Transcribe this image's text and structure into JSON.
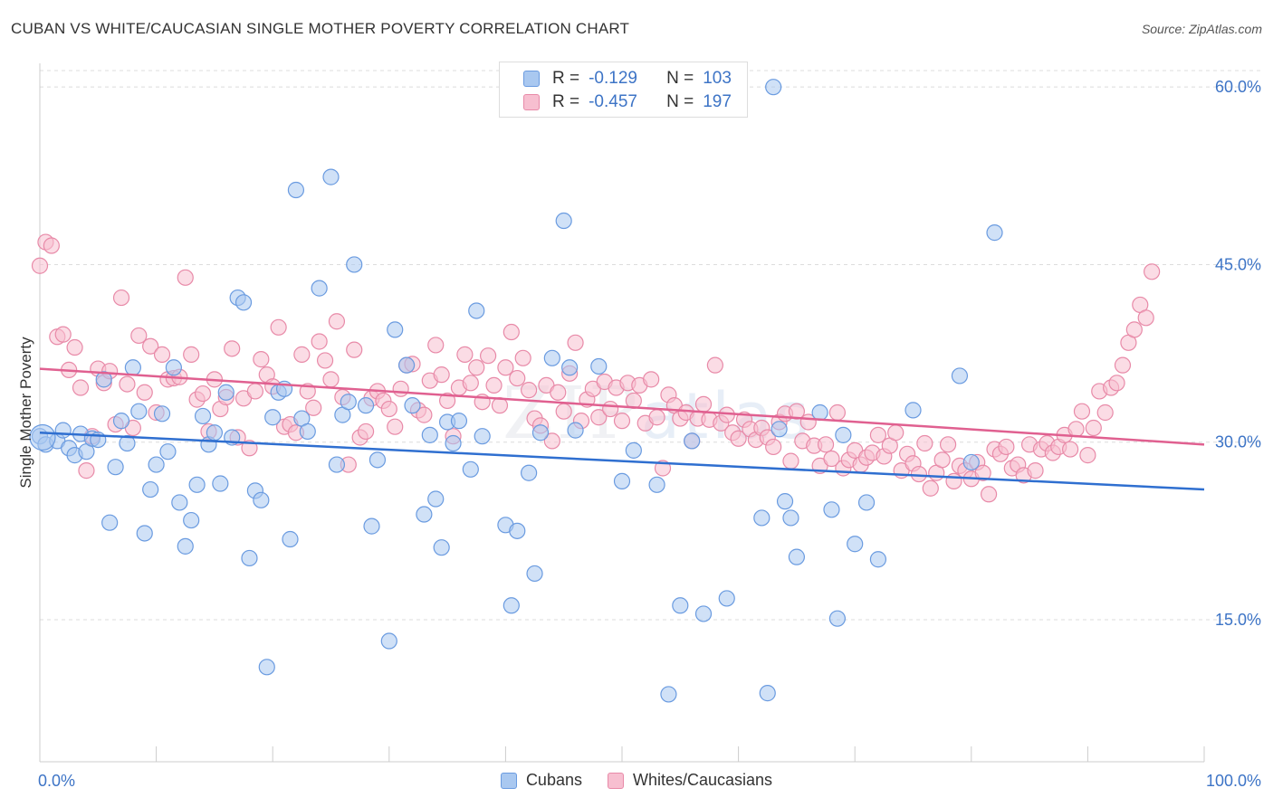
{
  "title": "CUBAN VS WHITE/CAUCASIAN SINGLE MOTHER POVERTY CORRELATION CHART",
  "source": "Source: ZipAtlas.com",
  "watermark": {
    "zip": "ZIP",
    "atlas": "atlas"
  },
  "legend": [
    {
      "r_label": "R =",
      "r_value": "-0.129",
      "n_label": "N =",
      "n_value": "103",
      "color": "#a9c8f0",
      "border": "#6a9be0"
    },
    {
      "r_label": "R =",
      "r_value": "-0.457",
      "n_label": "N =",
      "n_value": "197",
      "color": "#f7bfd0",
      "border": "#e88aa8"
    }
  ],
  "chart_data": {
    "type": "scatter",
    "ylabel": "Single Mother Poverty",
    "xlim": [
      0,
      100
    ],
    "ylim": [
      3,
      62
    ],
    "x_tick_labels": [
      "0.0%",
      "100.0%"
    ],
    "y_ticks": [
      {
        "value": 15,
        "label": "15.0%"
      },
      {
        "value": 30,
        "label": "30.0%"
      },
      {
        "value": 45,
        "label": "45.0%"
      },
      {
        "value": 60,
        "label": "60.0%"
      }
    ],
    "grid": true,
    "legend_position": "bottom",
    "series": [
      {
        "name": "Cubans",
        "color": "#6a9be0",
        "fill": "#a9c8f0",
        "trend": {
          "x": [
            0,
            100
          ],
          "y": [
            30.8,
            26.0
          ],
          "color": "#2f6fd0"
        },
        "points": [
          [
            0,
            30.5
          ],
          [
            0.5,
            29.8
          ],
          [
            1.5,
            30.1
          ],
          [
            2,
            31.0
          ],
          [
            2.5,
            29.5
          ],
          [
            3,
            28.9
          ],
          [
            3.5,
            30.7
          ],
          [
            4,
            29.2
          ],
          [
            4.5,
            30.3
          ],
          [
            5,
            30.2
          ],
          [
            5.5,
            35.3
          ],
          [
            6,
            23.2
          ],
          [
            6.5,
            27.9
          ],
          [
            7,
            31.8
          ],
          [
            7.5,
            29.9
          ],
          [
            8,
            36.3
          ],
          [
            8.5,
            32.6
          ],
          [
            9,
            22.3
          ],
          [
            9.5,
            26.0
          ],
          [
            10,
            28.1
          ],
          [
            10.5,
            32.4
          ],
          [
            11,
            29.2
          ],
          [
            11.5,
            36.3
          ],
          [
            12,
            24.9
          ],
          [
            12.5,
            21.2
          ],
          [
            13,
            23.4
          ],
          [
            13.5,
            26.4
          ],
          [
            14,
            32.2
          ],
          [
            14.5,
            29.8
          ],
          [
            15,
            30.8
          ],
          [
            15.5,
            26.5
          ],
          [
            16,
            34.2
          ],
          [
            16.5,
            30.4
          ],
          [
            17,
            42.2
          ],
          [
            17.5,
            41.8
          ],
          [
            18,
            20.2
          ],
          [
            18.5,
            25.9
          ],
          [
            19,
            25.1
          ],
          [
            19.5,
            11.0
          ],
          [
            20,
            32.1
          ],
          [
            20.5,
            34.2
          ],
          [
            21,
            34.5
          ],
          [
            21.5,
            21.8
          ],
          [
            22,
            51.3
          ],
          [
            22.5,
            32.0
          ],
          [
            23,
            30.9
          ],
          [
            24,
            43.0
          ],
          [
            25,
            52.4
          ],
          [
            25.5,
            28.1
          ],
          [
            26,
            32.3
          ],
          [
            26.5,
            33.4
          ],
          [
            27,
            45.0
          ],
          [
            28,
            33.1
          ],
          [
            28.5,
            22.9
          ],
          [
            29,
            28.5
          ],
          [
            30,
            13.2
          ],
          [
            30.5,
            39.5
          ],
          [
            31.5,
            36.5
          ],
          [
            32,
            33.1
          ],
          [
            33,
            23.9
          ],
          [
            33.5,
            30.6
          ],
          [
            34,
            25.2
          ],
          [
            34.5,
            21.1
          ],
          [
            35,
            31.7
          ],
          [
            35.5,
            29.9
          ],
          [
            36,
            31.8
          ],
          [
            37,
            27.7
          ],
          [
            37.5,
            41.1
          ],
          [
            38,
            30.5
          ],
          [
            40,
            23.0
          ],
          [
            40.5,
            16.2
          ],
          [
            41,
            22.5
          ],
          [
            42,
            27.4
          ],
          [
            42.5,
            18.9
          ],
          [
            43,
            30.8
          ],
          [
            44,
            37.1
          ],
          [
            45,
            48.7
          ],
          [
            45.5,
            36.3
          ],
          [
            46,
            31.0
          ],
          [
            48,
            36.4
          ],
          [
            50,
            26.7
          ],
          [
            51,
            29.3
          ],
          [
            53,
            26.4
          ],
          [
            54,
            8.7
          ],
          [
            55,
            16.2
          ],
          [
            56,
            30.1
          ],
          [
            57,
            15.5
          ],
          [
            59,
            16.8
          ],
          [
            62,
            23.6
          ],
          [
            62.5,
            8.8
          ],
          [
            63,
            60.0
          ],
          [
            63.5,
            31.1
          ],
          [
            64,
            25.0
          ],
          [
            64.5,
            23.6
          ],
          [
            65,
            20.3
          ],
          [
            67,
            32.5
          ],
          [
            68,
            24.3
          ],
          [
            68.5,
            15.1
          ],
          [
            69,
            30.6
          ],
          [
            70,
            21.4
          ],
          [
            71,
            24.9
          ],
          [
            72,
            20.1
          ],
          [
            75,
            32.7
          ],
          [
            79,
            35.6
          ],
          [
            80,
            28.3
          ],
          [
            82,
            47.7
          ]
        ]
      },
      {
        "name": "Whites/Caucasians",
        "color": "#e88aa8",
        "fill": "#f7bfd0",
        "trend": {
          "x": [
            0,
            100
          ],
          "y": [
            36.2,
            29.8
          ],
          "color": "#e06090"
        },
        "points": [
          [
            0,
            44.9
          ],
          [
            0.5,
            46.9
          ],
          [
            1,
            46.6
          ],
          [
            1.5,
            38.9
          ],
          [
            2,
            39.1
          ],
          [
            2.5,
            36.1
          ],
          [
            3,
            38.0
          ],
          [
            3.5,
            34.6
          ],
          [
            4,
            27.6
          ],
          [
            4.5,
            30.5
          ],
          [
            5,
            36.2
          ],
          [
            5.5,
            35.0
          ],
          [
            6,
            36.0
          ],
          [
            6.5,
            31.5
          ],
          [
            7,
            42.2
          ],
          [
            7.5,
            34.9
          ],
          [
            8,
            31.2
          ],
          [
            8.5,
            39.0
          ],
          [
            9,
            34.2
          ],
          [
            9.5,
            38.1
          ],
          [
            10,
            32.5
          ],
          [
            10.5,
            37.4
          ],
          [
            11,
            35.3
          ],
          [
            11.5,
            35.4
          ],
          [
            12,
            35.5
          ],
          [
            12.5,
            43.9
          ],
          [
            13,
            37.4
          ],
          [
            13.5,
            33.6
          ],
          [
            14,
            34.1
          ],
          [
            14.5,
            30.9
          ],
          [
            15,
            35.3
          ],
          [
            15.5,
            32.8
          ],
          [
            16,
            33.8
          ],
          [
            16.5,
            37.9
          ],
          [
            17,
            30.4
          ],
          [
            17.5,
            33.7
          ],
          [
            18,
            29.5
          ],
          [
            18.5,
            34.3
          ],
          [
            19,
            37.0
          ],
          [
            19.5,
            35.7
          ],
          [
            20,
            34.7
          ],
          [
            20.5,
            39.7
          ],
          [
            21,
            31.3
          ],
          [
            21.5,
            31.5
          ],
          [
            22,
            30.8
          ],
          [
            22.5,
            37.4
          ],
          [
            23,
            34.3
          ],
          [
            23.5,
            32.9
          ],
          [
            24,
            38.5
          ],
          [
            24.5,
            36.9
          ],
          [
            25,
            35.3
          ],
          [
            25.5,
            40.2
          ],
          [
            26,
            33.8
          ],
          [
            26.5,
            28.1
          ],
          [
            27,
            37.8
          ],
          [
            27.5,
            30.4
          ],
          [
            28,
            30.9
          ],
          [
            28.5,
            33.7
          ],
          [
            29,
            34.3
          ],
          [
            29.5,
            33.5
          ],
          [
            30,
            32.8
          ],
          [
            30.5,
            31.3
          ],
          [
            31,
            34.5
          ],
          [
            31.5,
            36.5
          ],
          [
            32,
            36.6
          ],
          [
            32.5,
            32.7
          ],
          [
            33,
            32.3
          ],
          [
            33.5,
            35.2
          ],
          [
            34,
            38.2
          ],
          [
            34.5,
            35.7
          ],
          [
            35,
            33.5
          ],
          [
            35.5,
            30.5
          ],
          [
            36,
            34.6
          ],
          [
            36.5,
            37.4
          ],
          [
            37,
            35.0
          ],
          [
            37.5,
            36.3
          ],
          [
            38,
            33.4
          ],
          [
            38.5,
            37.3
          ],
          [
            39,
            34.8
          ],
          [
            39.5,
            33.1
          ],
          [
            40,
            36.3
          ],
          [
            40.5,
            39.3
          ],
          [
            41,
            35.4
          ],
          [
            41.5,
            37.1
          ],
          [
            42,
            34.4
          ],
          [
            42.5,
            32.0
          ],
          [
            43,
            31.4
          ],
          [
            43.5,
            34.8
          ],
          [
            44,
            30.1
          ],
          [
            44.5,
            34.2
          ],
          [
            45,
            32.6
          ],
          [
            45.5,
            35.8
          ],
          [
            46,
            38.4
          ],
          [
            46.5,
            31.8
          ],
          [
            47,
            33.6
          ],
          [
            47.5,
            34.5
          ],
          [
            48,
            32.1
          ],
          [
            48.5,
            35.1
          ],
          [
            49,
            32.8
          ],
          [
            49.5,
            34.6
          ],
          [
            50,
            31.8
          ],
          [
            50.5,
            35.0
          ],
          [
            51,
            33.5
          ],
          [
            51.5,
            34.8
          ],
          [
            52,
            31.6
          ],
          [
            52.5,
            35.3
          ],
          [
            53,
            32.1
          ],
          [
            53.5,
            27.8
          ],
          [
            54,
            34.0
          ],
          [
            54.5,
            33.1
          ],
          [
            55,
            32.0
          ],
          [
            55.5,
            32.5
          ],
          [
            56,
            30.1
          ],
          [
            56.5,
            32.0
          ],
          [
            57,
            33.2
          ],
          [
            57.5,
            31.9
          ],
          [
            58,
            36.5
          ],
          [
            58.5,
            31.6
          ],
          [
            59,
            32.3
          ],
          [
            59.5,
            30.8
          ],
          [
            60,
            30.3
          ],
          [
            60.5,
            31.9
          ],
          [
            61,
            31.1
          ],
          [
            61.5,
            30.2
          ],
          [
            62,
            31.2
          ],
          [
            62.5,
            30.4
          ],
          [
            63,
            29.6
          ],
          [
            63.5,
            31.7
          ],
          [
            64,
            32.4
          ],
          [
            64.5,
            28.4
          ],
          [
            65,
            32.6
          ],
          [
            65.5,
            30.1
          ],
          [
            66,
            31.7
          ],
          [
            66.5,
            29.7
          ],
          [
            67,
            28.0
          ],
          [
            67.5,
            29.8
          ],
          [
            68,
            28.6
          ],
          [
            68.5,
            32.5
          ],
          [
            69,
            27.8
          ],
          [
            69.5,
            28.5
          ],
          [
            70,
            29.3
          ],
          [
            70.5,
            28.1
          ],
          [
            71,
            28.7
          ],
          [
            71.5,
            29.1
          ],
          [
            72,
            30.6
          ],
          [
            72.5,
            28.8
          ],
          [
            73,
            29.7
          ],
          [
            73.5,
            30.8
          ],
          [
            74,
            27.6
          ],
          [
            74.5,
            29.0
          ],
          [
            75,
            28.2
          ],
          [
            75.5,
            27.3
          ],
          [
            76,
            29.9
          ],
          [
            76.5,
            26.1
          ],
          [
            77,
            27.4
          ],
          [
            77.5,
            28.5
          ],
          [
            78,
            29.8
          ],
          [
            78.5,
            26.7
          ],
          [
            79,
            28.0
          ],
          [
            79.5,
            27.6
          ],
          [
            80,
            26.9
          ],
          [
            80.5,
            28.3
          ],
          [
            81,
            27.4
          ],
          [
            81.5,
            25.6
          ],
          [
            82,
            29.4
          ],
          [
            82.5,
            29.0
          ],
          [
            83,
            29.6
          ],
          [
            83.5,
            27.8
          ],
          [
            84,
            28.1
          ],
          [
            84.5,
            27.2
          ],
          [
            85,
            29.8
          ],
          [
            85.5,
            27.6
          ],
          [
            86,
            29.4
          ],
          [
            86.5,
            29.9
          ],
          [
            87,
            29.1
          ],
          [
            87.5,
            29.6
          ],
          [
            88,
            30.6
          ],
          [
            88.5,
            29.4
          ],
          [
            89,
            31.1
          ],
          [
            89.5,
            32.6
          ],
          [
            90,
            28.9
          ],
          [
            90.5,
            31.2
          ],
          [
            91,
            34.3
          ],
          [
            91.5,
            32.5
          ],
          [
            92,
            34.6
          ],
          [
            92.5,
            35.0
          ],
          [
            93,
            36.5
          ],
          [
            93.5,
            38.4
          ],
          [
            94,
            39.5
          ],
          [
            94.5,
            41.6
          ],
          [
            95,
            40.5
          ],
          [
            95.5,
            44.4
          ]
        ]
      }
    ]
  }
}
